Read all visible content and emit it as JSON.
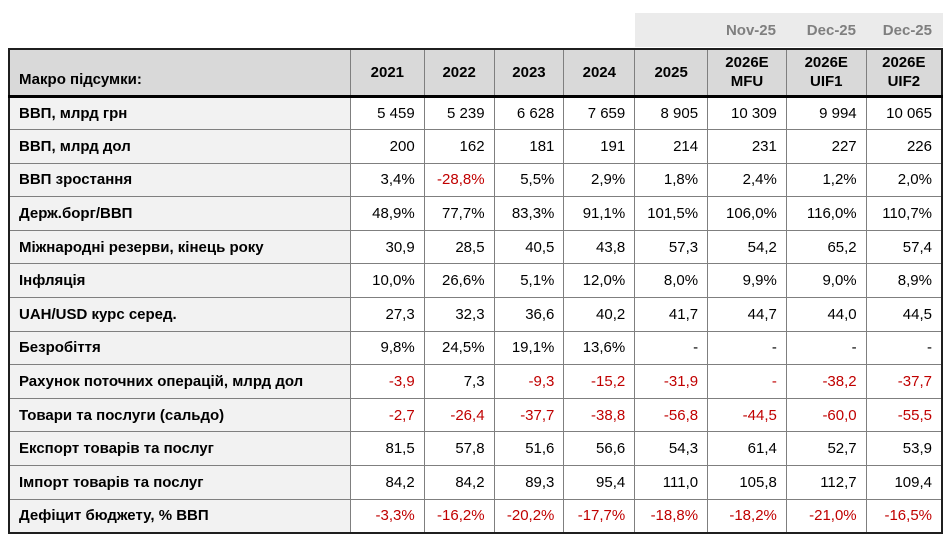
{
  "colors": {
    "negative_value_red": "#c00000",
    "header_background": "#d9d9d9",
    "row_label_background": "#f2f2f2",
    "date_band_background": "#ebebeb",
    "date_band_text": "#7f7f7f"
  },
  "date_band": {
    "labels": [
      "Nov-25",
      "Dec-25",
      "Dec-25"
    ]
  },
  "table": {
    "corner_label": "Макро підсумки:",
    "columns": [
      [
        "2021"
      ],
      [
        "2022"
      ],
      [
        "2023"
      ],
      [
        "2024"
      ],
      [
        "2025"
      ],
      [
        "2026E",
        "MFU"
      ],
      [
        "2026E",
        "UIF1"
      ],
      [
        "2026E",
        "UIF2"
      ]
    ],
    "rows": [
      {
        "label": "ВВП, млрд грн",
        "values": [
          "5 459",
          "5 239",
          "6 628",
          "7 659",
          "8 905",
          "10 309",
          "9 994",
          "10 065"
        ],
        "red": []
      },
      {
        "label": "ВВП, млрд дол",
        "values": [
          "200",
          "162",
          "181",
          "191",
          "214",
          "231",
          "227",
          "226"
        ],
        "red": []
      },
      {
        "label": "ВВП зростання",
        "values": [
          "3,4%",
          "-28,8%",
          "5,5%",
          "2,9%",
          "1,8%",
          "2,4%",
          "1,2%",
          "2,0%"
        ],
        "red": [
          1
        ]
      },
      {
        "label": "Держ.борг/ВВП",
        "values": [
          "48,9%",
          "77,7%",
          "83,3%",
          "91,1%",
          "101,5%",
          "106,0%",
          "116,0%",
          "110,7%"
        ],
        "red": []
      },
      {
        "label": "Міжнародні резерви, кінець року",
        "values": [
          "30,9",
          "28,5",
          "40,5",
          "43,8",
          "57,3",
          "54,2",
          "65,2",
          "57,4"
        ],
        "red": []
      },
      {
        "label": "Інфляція",
        "values": [
          "10,0%",
          "26,6%",
          "5,1%",
          "12,0%",
          "8,0%",
          "9,9%",
          "9,0%",
          "8,9%"
        ],
        "red": []
      },
      {
        "label": "UAH/USD курс серед.",
        "values": [
          "27,3",
          "32,3",
          "36,6",
          "40,2",
          "41,7",
          "44,7",
          "44,0",
          "44,5"
        ],
        "red": []
      },
      {
        "label": "Безробіття",
        "values": [
          "9,8%",
          "24,5%",
          "19,1%",
          "13,6%",
          "-",
          "-",
          "-",
          "-"
        ],
        "red": []
      },
      {
        "label": "Рахунок поточних операцій, млрд дол",
        "values": [
          "-3,9",
          "7,3",
          "-9,3",
          "-15,2",
          "-31,9",
          "-",
          "-38,2",
          "-37,7"
        ],
        "red": [
          0,
          2,
          3,
          4,
          5,
          6,
          7
        ]
      },
      {
        "label": "Товари та послуги (сальдо)",
        "values": [
          "-2,7",
          "-26,4",
          "-37,7",
          "-38,8",
          "-56,8",
          "-44,5",
          "-60,0",
          "-55,5"
        ],
        "red": [
          0,
          1,
          2,
          3,
          4,
          5,
          6,
          7
        ]
      },
      {
        "label": "Експорт товарів та послуг",
        "values": [
          "81,5",
          "57,8",
          "51,6",
          "56,6",
          "54,3",
          "61,4",
          "52,7",
          "53,9"
        ],
        "red": []
      },
      {
        "label": "Імпорт товарів та послуг",
        "values": [
          "84,2",
          "84,2",
          "89,3",
          "95,4",
          "111,0",
          "105,8",
          "112,7",
          "109,4"
        ],
        "red": []
      },
      {
        "label": "Дефіцит бюджету, % ВВП",
        "values": [
          "-3,3%",
          "-16,2%",
          "-20,2%",
          "-17,7%",
          "-18,8%",
          "-18,2%",
          "-21,0%",
          "-16,5%"
        ],
        "red": [
          0,
          1,
          2,
          3,
          4,
          5,
          6,
          7
        ]
      }
    ]
  }
}
